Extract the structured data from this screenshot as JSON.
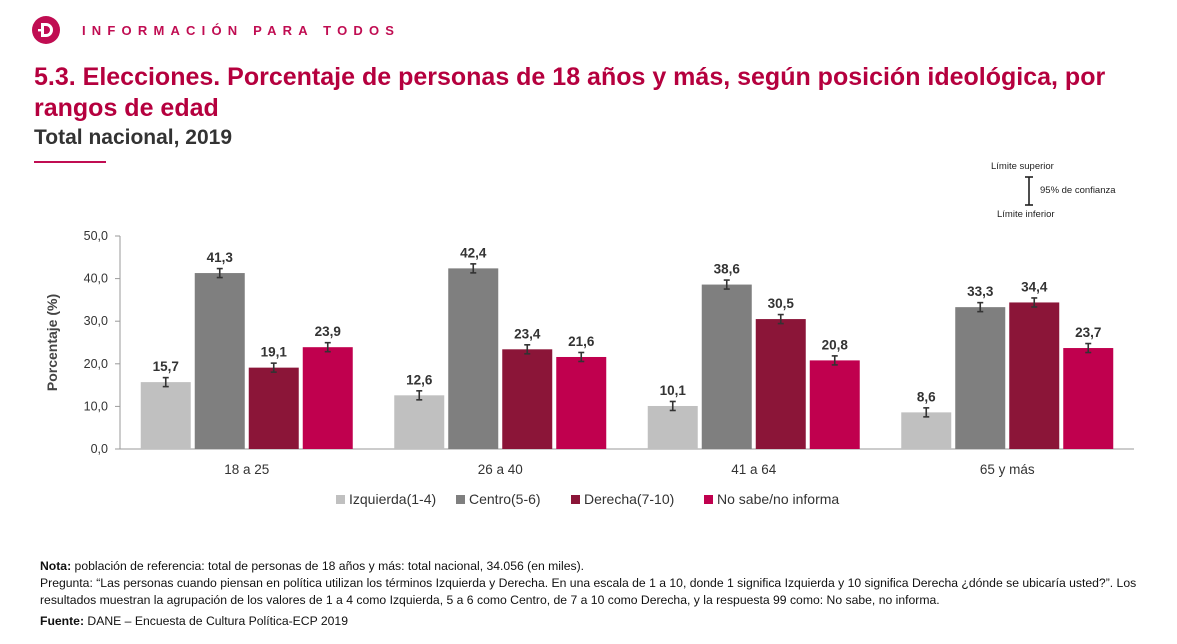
{
  "header": {
    "brand": "INFORMACIÓN PARA TODOS"
  },
  "title": "5.3. Elecciones. Porcentaje de personas de 18 años y más, según posición ideológica, por rangos de edad",
  "subtitle": "Total nacional, 2019",
  "ci_legend": {
    "upper": "Límite superior",
    "confidence": "95% de confianza",
    "lower": "Límite inferior"
  },
  "chart_data": {
    "type": "bar",
    "ylabel": "Porcentaje (%)",
    "ylim": [
      0,
      50
    ],
    "yticks": [
      "0,0",
      "10,0",
      "20,0",
      "30,0",
      "40,0",
      "50,0"
    ],
    "categories": [
      "18 a 25",
      "26 a 40",
      "41 a 64",
      "65 y más"
    ],
    "series": [
      {
        "name": "Izquierda(1-4)",
        "color": "#c0c0c0",
        "values": [
          15.7,
          12.6,
          10.1,
          8.6
        ],
        "labels": [
          "15,7",
          "12,6",
          "10,1",
          "8,6"
        ]
      },
      {
        "name": "Centro(5-6)",
        "color": "#7f7f7f",
        "values": [
          41.3,
          42.4,
          38.6,
          33.3
        ],
        "labels": [
          "41,3",
          "42,4",
          "38,6",
          "33,3"
        ]
      },
      {
        "name": "Derecha(7-10)",
        "color": "#8b1538",
        "values": [
          19.1,
          23.4,
          30.5,
          34.4
        ],
        "labels": [
          "19,1",
          "23,4",
          "30,5",
          "34,4"
        ]
      },
      {
        "name": "No sabe/no informa",
        "color": "#c0004e",
        "values": [
          23.9,
          21.6,
          20.8,
          23.7
        ],
        "labels": [
          "23,9",
          "21,6",
          "20,8",
          "23,7"
        ]
      }
    ],
    "legend_position": "bottom",
    "grid": false,
    "error_bars": "95% de confianza"
  },
  "notes": {
    "nota_label": "Nota:",
    "nota_text": " población de referencia: total de personas de 18 años y más: total nacional, 34.056 (en miles).",
    "pregunta": "Pregunta: “Las personas cuando piensan en política utilizan los términos Izquierda y Derecha. En una escala de 1 a 10, donde 1 significa Izquierda y 10 significa Derecha ¿dónde se ubicaría usted?”. Los resultados muestran la agrupación de los valores de 1 a 4 como Izquierda, 5 a 6 como Centro, de 7 a 10 como Derecha, y la respuesta 99 como: No sabe, no informa.",
    "fuente_label": "Fuente:",
    "fuente_text": " DANE – Encuesta de Cultura Política-ECP 2019"
  }
}
